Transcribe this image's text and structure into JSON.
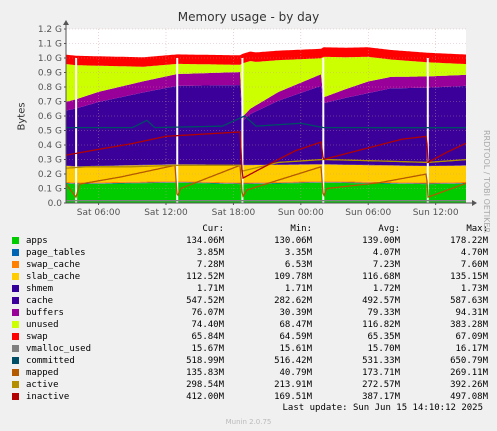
{
  "title": "Memory usage - by day",
  "side_label": "RRDTOOL / TOBI OETIKER",
  "footer": {
    "last_update": "Last update: Sun Jun 15 14:10:12 2025",
    "munin": "Munin 2.0.75"
  },
  "legend_headers": [
    "Cur:",
    "Min:",
    "Avg:",
    "Max:"
  ],
  "legend": [
    {
      "name": "apps",
      "color": "#00cc00",
      "cur": "134.06M",
      "min": "130.06M",
      "avg": "139.00M",
      "max": "178.22M"
    },
    {
      "name": "page_tables",
      "color": "#0066b3",
      "cur": "3.85M",
      "min": "3.35M",
      "avg": "4.07M",
      "max": "4.70M"
    },
    {
      "name": "swap_cache",
      "color": "#ff8000",
      "cur": "7.28M",
      "min": "6.53M",
      "avg": "7.23M",
      "max": "7.60M"
    },
    {
      "name": "slab_cache",
      "color": "#ffcc00",
      "cur": "112.52M",
      "min": "109.78M",
      "avg": "116.68M",
      "max": "135.15M"
    },
    {
      "name": "shmem",
      "color": "#330099",
      "cur": "1.71M",
      "min": "1.71M",
      "avg": "1.72M",
      "max": "1.73M"
    },
    {
      "name": "cache",
      "color": "#3b0099",
      "cur": "547.52M",
      "min": "282.62M",
      "avg": "492.57M",
      "max": "587.63M"
    },
    {
      "name": "buffers",
      "color": "#990099",
      "cur": "76.07M",
      "min": "30.39M",
      "avg": "79.33M",
      "max": "94.31M"
    },
    {
      "name": "unused",
      "color": "#ccff00",
      "cur": "74.40M",
      "min": "68.47M",
      "avg": "116.82M",
      "max": "383.28M"
    },
    {
      "name": "swap",
      "color": "#ff0000",
      "cur": "65.84M",
      "min": "64.59M",
      "avg": "65.35M",
      "max": "67.09M"
    },
    {
      "name": "vmalloc_used",
      "color": "#808080",
      "cur": "15.67M",
      "min": "15.61M",
      "avg": "15.70M",
      "max": "16.17M"
    },
    {
      "name": "committed",
      "color": "#004d66",
      "cur": "518.99M",
      "min": "516.42M",
      "avg": "531.33M",
      "max": "650.79M"
    },
    {
      "name": "mapped",
      "color": "#b35900",
      "cur": "135.83M",
      "min": "40.79M",
      "avg": "173.71M",
      "max": "269.11M"
    },
    {
      "name": "active",
      "color": "#b38f00",
      "cur": "298.54M",
      "min": "213.91M",
      "avg": "272.57M",
      "max": "392.26M"
    },
    {
      "name": "inactive",
      "color": "#b30000",
      "cur": "412.00M",
      "min": "169.51M",
      "avg": "387.17M",
      "max": "497.08M"
    }
  ],
  "chart_data": {
    "type": "area",
    "title": "Memory usage - by day",
    "ylabel": "Bytes",
    "xlabel": "",
    "ylim": [
      0,
      1.2
    ],
    "y_unit": "G",
    "y_ticks": [
      "0.0",
      "0.1 G",
      "0.2 G",
      "0.3 G",
      "0.4 G",
      "0.5 G",
      "0.6 G",
      "0.7 G",
      "0.8 G",
      "0.9 G",
      "1.0 G",
      "1.1 G",
      "1.2 G"
    ],
    "x_ticks": [
      "Sat 06:00",
      "Sat 12:00",
      "Sat 18:00",
      "Sun 00:00",
      "Sun 06:00",
      "Sun 12:00"
    ],
    "x_start_hour": 3.1,
    "x_range_hours": 35.6,
    "x_tick_hours": [
      6,
      12,
      18,
      24,
      30,
      36
    ],
    "restarts_hours": [
      4.0,
      13.0,
      18.8,
      26.0,
      35.3
    ],
    "stack_order": [
      "apps",
      "page_tables",
      "swap_cache",
      "slab_cache",
      "shmem",
      "cache",
      "buffers",
      "unused",
      "swap"
    ],
    "stacked_series": [
      {
        "name": "apps",
        "points": [
          [
            3.1,
            0.135
          ],
          [
            4.0,
            0.13
          ],
          [
            13.0,
            0.14
          ],
          [
            18.8,
            0.13
          ],
          [
            26.0,
            0.14
          ],
          [
            35.3,
            0.13
          ],
          [
            38.7,
            0.134
          ]
        ]
      },
      {
        "name": "page_tables",
        "points": [
          [
            3.1,
            0.004
          ],
          [
            38.7,
            0.004
          ]
        ]
      },
      {
        "name": "swap_cache",
        "points": [
          [
            3.1,
            0.007
          ],
          [
            38.7,
            0.007
          ]
        ]
      },
      {
        "name": "slab_cache",
        "points": [
          [
            3.1,
            0.11
          ],
          [
            13.0,
            0.115
          ],
          [
            18.8,
            0.12
          ],
          [
            26.0,
            0.115
          ],
          [
            38.7,
            0.113
          ]
        ]
      },
      {
        "name": "shmem",
        "points": [
          [
            3.1,
            0.002
          ],
          [
            38.7,
            0.002
          ]
        ]
      },
      {
        "name": "cache",
        "points": [
          [
            3.1,
            0.38
          ],
          [
            6,
            0.44
          ],
          [
            10,
            0.5
          ],
          [
            13,
            0.54
          ],
          [
            18.6,
            0.55
          ],
          [
            18.8,
            0.3
          ],
          [
            19.5,
            0.35
          ],
          [
            22,
            0.44
          ],
          [
            25.8,
            0.54
          ],
          [
            26.0,
            0.42
          ],
          [
            28,
            0.46
          ],
          [
            32,
            0.53
          ],
          [
            38.7,
            0.548
          ]
        ]
      },
      {
        "name": "buffers",
        "points": [
          [
            3.1,
            0.06
          ],
          [
            6,
            0.07
          ],
          [
            12,
            0.08
          ],
          [
            18.6,
            0.09
          ],
          [
            18.8,
            0.03
          ],
          [
            22,
            0.06
          ],
          [
            25.8,
            0.08
          ],
          [
            26.0,
            0.04
          ],
          [
            30,
            0.08
          ],
          [
            38.7,
            0.076
          ]
        ]
      },
      {
        "name": "unused",
        "points": [
          [
            3.1,
            0.26
          ],
          [
            6,
            0.18
          ],
          [
            10,
            0.1
          ],
          [
            13,
            0.07
          ],
          [
            18.6,
            0.05
          ],
          [
            18.8,
            0.37
          ],
          [
            20,
            0.3
          ],
          [
            22,
            0.22
          ],
          [
            25.8,
            0.11
          ],
          [
            26.0,
            0.28
          ],
          [
            28,
            0.22
          ],
          [
            32,
            0.12
          ],
          [
            38.7,
            0.074
          ]
        ]
      },
      {
        "name": "swap",
        "points": [
          [
            3.1,
            0.065
          ],
          [
            38.7,
            0.066
          ]
        ]
      }
    ],
    "line_series": [
      {
        "name": "vmalloc_used",
        "points": [
          [
            3.1,
            0.016
          ],
          [
            38.7,
            0.016
          ]
        ]
      },
      {
        "name": "committed",
        "points": [
          [
            3.1,
            0.52
          ],
          [
            9,
            0.52
          ],
          [
            10.3,
            0.57
          ],
          [
            11,
            0.52
          ],
          [
            17,
            0.53
          ],
          [
            19,
            0.6
          ],
          [
            20,
            0.53
          ],
          [
            24,
            0.55
          ],
          [
            26,
            0.52
          ],
          [
            38.7,
            0.519
          ]
        ]
      },
      {
        "name": "mapped",
        "points": [
          [
            3.1,
            0.13
          ],
          [
            4.0,
            0.04
          ],
          [
            4.3,
            0.13
          ],
          [
            8,
            0.18
          ],
          [
            12.8,
            0.26
          ],
          [
            13.0,
            0.04
          ],
          [
            13.3,
            0.1
          ],
          [
            18.6,
            0.26
          ],
          [
            18.8,
            0.04
          ],
          [
            19.2,
            0.09
          ],
          [
            25.8,
            0.25
          ],
          [
            26.0,
            0.04
          ],
          [
            26.3,
            0.1
          ],
          [
            31,
            0.14
          ],
          [
            35.2,
            0.2
          ],
          [
            35.3,
            0.04
          ],
          [
            38.7,
            0.136
          ]
        ]
      },
      {
        "name": "active",
        "points": [
          [
            3.1,
            0.24
          ],
          [
            5,
            0.25
          ],
          [
            9,
            0.25
          ],
          [
            13,
            0.26
          ],
          [
            18.6,
            0.26
          ],
          [
            18.8,
            0.22
          ],
          [
            22,
            0.28
          ],
          [
            24,
            0.29
          ],
          [
            26,
            0.3
          ],
          [
            31,
            0.29
          ],
          [
            35.3,
            0.28
          ],
          [
            38.7,
            0.299
          ]
        ]
      },
      {
        "name": "inactive",
        "points": [
          [
            3.1,
            0.33
          ],
          [
            6,
            0.37
          ],
          [
            9,
            0.41
          ],
          [
            12,
            0.46
          ],
          [
            18.6,
            0.49
          ],
          [
            18.8,
            0.17
          ],
          [
            21,
            0.26
          ],
          [
            23.5,
            0.36
          ],
          [
            25.8,
            0.42
          ],
          [
            26.0,
            0.3
          ],
          [
            29,
            0.36
          ],
          [
            33,
            0.44
          ],
          [
            35.2,
            0.46
          ],
          [
            35.3,
            0.28
          ],
          [
            37,
            0.35
          ],
          [
            38.7,
            0.412
          ]
        ]
      }
    ]
  }
}
